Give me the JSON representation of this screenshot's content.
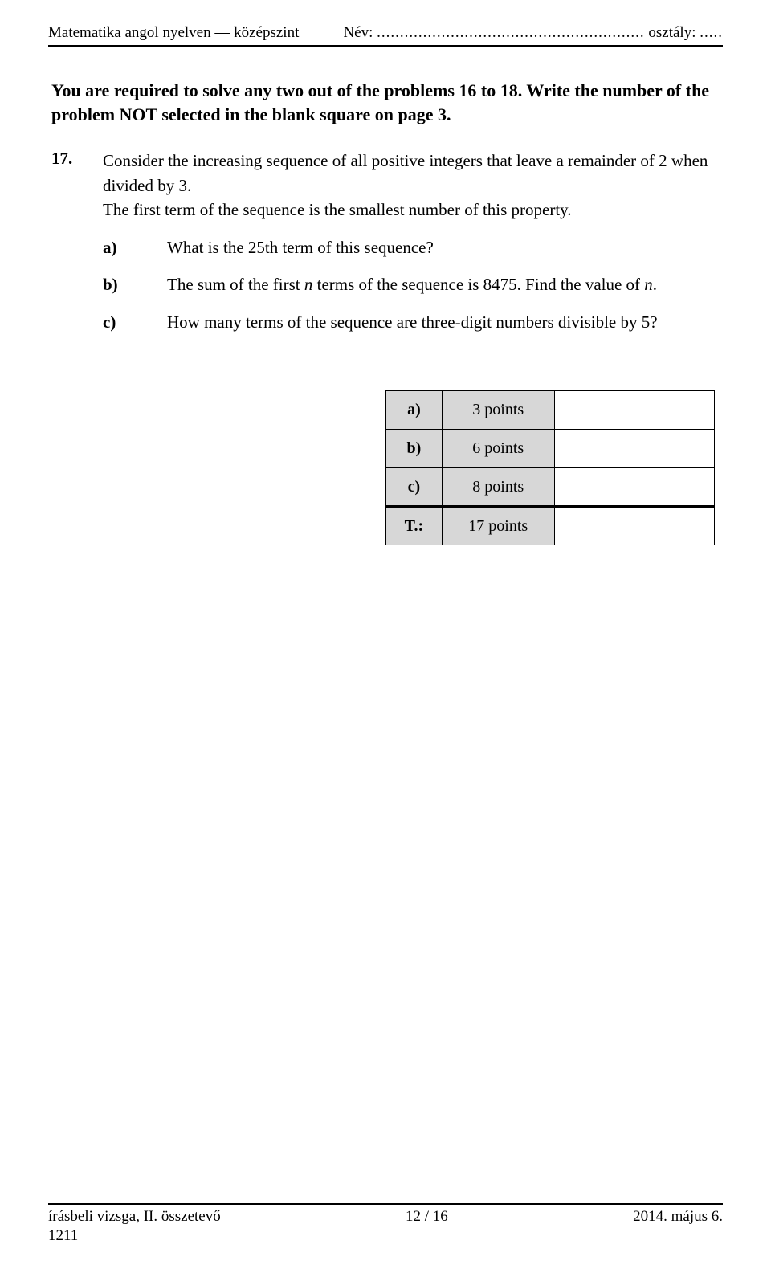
{
  "header": {
    "left": "Matematika angol nyelven — középszint",
    "name_label": "Név:",
    "name_dots": "..........................................................",
    "class_label": "osztály:",
    "class_dots": "....."
  },
  "instructions": "You are required to solve any two out of the problems 16 to 18. Write the number of the problem NOT selected in the blank square on page 3.",
  "problem": {
    "number": "17.",
    "text_line1": "Consider the increasing sequence of all positive integers that leave a remainder of 2 when divided by 3.",
    "text_line2": "The first term of the sequence is the smallest number of this property."
  },
  "subparts": [
    {
      "label": "a)",
      "text": "What is the 25th term of this sequence?"
    },
    {
      "label": "b)",
      "prefix": "The sum of the first ",
      "ital1": "n",
      "mid": " terms of the sequence is 8475. Find the value of ",
      "ital2": "n",
      "suffix": "."
    },
    {
      "label": "c)",
      "text": "How many terms of the sequence are three-digit numbers divisible by 5?"
    }
  ],
  "points_table": {
    "rows": [
      {
        "label": "a)",
        "points": "3 points"
      },
      {
        "label": "b)",
        "points": "6 points"
      },
      {
        "label": "c)",
        "points": "8 points"
      }
    ],
    "total_label": "T.:",
    "total_points": "17 points"
  },
  "footer": {
    "left": "írásbeli vizsga, II. összetevő",
    "center": "12 / 16",
    "right": "2014. május 6.",
    "code": "1211"
  }
}
